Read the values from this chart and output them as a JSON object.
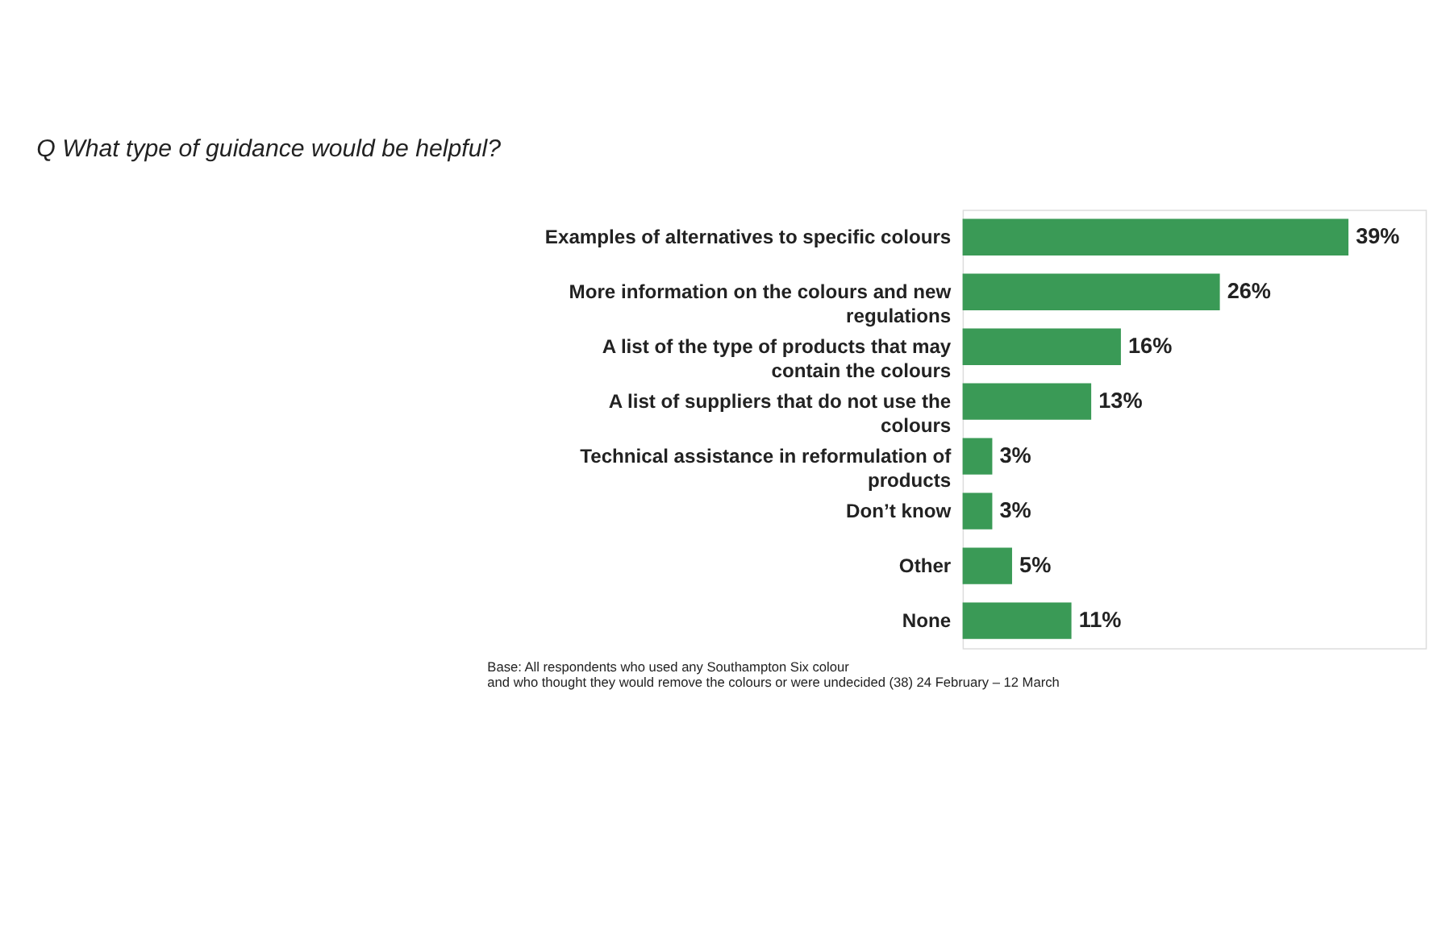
{
  "chart_data": {
    "type": "bar",
    "orientation": "horizontal",
    "title": "Q What type of guidance would be helpful?",
    "categories": [
      "Examples of alternatives to specific colours",
      "More information on the colours and new regulations",
      "A list of the type of products that may contain the colours",
      "A list of suppliers that do not use the colours",
      "Technical assistance in reformulation of products",
      "Don’t know",
      "Other",
      "None"
    ],
    "values": [
      39,
      26,
      16,
      13,
      3,
      3,
      5,
      11
    ],
    "value_labels": [
      "39%",
      "26%",
      "16%",
      "13%",
      "3%",
      "3%",
      "5%",
      "11%"
    ],
    "color": "#3a9a56",
    "annotations": [
      "Base: All respondents  who used any Southampton Six colour",
      "and who thought they would remove the colours or were undecided  (38) 24 February – 12 March"
    ]
  }
}
